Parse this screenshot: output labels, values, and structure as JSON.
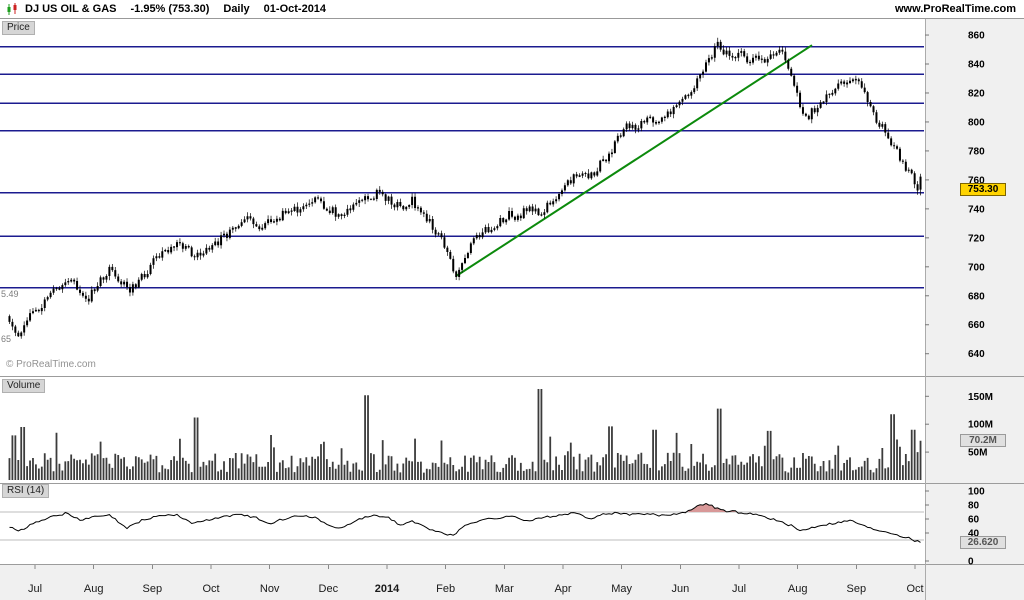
{
  "header": {
    "symbol": "DJ US OIL & GAS",
    "change": "-1.95% (753.30)",
    "timeframe": "Daily",
    "date": "01-Oct-2014",
    "site": "www.ProRealTime.com"
  },
  "panes": {
    "price": {
      "label": "Price",
      "watermark": "© ProRealTime.com",
      "last_label": "753.30",
      "left_labels": [
        {
          "text": "5.49",
          "price": 681
        },
        {
          "text": "65",
          "price": 650
        }
      ]
    },
    "volume": {
      "label": "Volume",
      "last_label": "70.2M"
    },
    "rsi": {
      "label": "RSI (14)",
      "last_label": "26.620"
    }
  },
  "colors": {
    "hline": "#1b1b8f",
    "trend": "#0c8a0c",
    "candle": "#000000",
    "volume_bar": "#3c3c3c",
    "rsi_line": "#000000",
    "rsi_band_fill": "#d89898",
    "grid_gray": "#bdbdbd",
    "axis_bg": "#f0f0f0",
    "divider": "#9c9c9c"
  },
  "chart_data": {
    "type": "candlestick",
    "title": "DJ US OIL & GAS Daily",
    "n_candles": 311,
    "x_axis": {
      "labels": [
        "Jul",
        "Aug",
        "Sep",
        "Oct",
        "Nov",
        "Dec",
        "2014",
        "Feb",
        "Mar",
        "Apr",
        "May",
        "Jun",
        "Jul",
        "Aug",
        "Sep",
        "Oct"
      ],
      "bold_index": 6
    },
    "price": {
      "ylim": [
        626,
        869
      ],
      "ticks": [
        860,
        840,
        820,
        800,
        780,
        760,
        740,
        720,
        700,
        680,
        660,
        640
      ],
      "hlines": [
        852,
        833,
        813,
        794,
        751,
        721,
        685.49
      ],
      "trendline": {
        "from": [
          457,
          694
        ],
        "to": [
          812,
          853
        ]
      },
      "last": 753.3,
      "anchors": [
        [
          8,
          666
        ],
        [
          13,
          658
        ],
        [
          18,
          651
        ],
        [
          26,
          662
        ],
        [
          36,
          670
        ],
        [
          48,
          679
        ],
        [
          60,
          687
        ],
        [
          70,
          692
        ],
        [
          80,
          685
        ],
        [
          88,
          677
        ],
        [
          98,
          689
        ],
        [
          108,
          698
        ],
        [
          118,
          693
        ],
        [
          128,
          684
        ],
        [
          140,
          691
        ],
        [
          152,
          702
        ],
        [
          164,
          710
        ],
        [
          176,
          716
        ],
        [
          188,
          711
        ],
        [
          198,
          707
        ],
        [
          210,
          713
        ],
        [
          222,
          720
        ],
        [
          234,
          727
        ],
        [
          248,
          733
        ],
        [
          260,
          728
        ],
        [
          272,
          732
        ],
        [
          286,
          737
        ],
        [
          300,
          741
        ],
        [
          314,
          746
        ],
        [
          326,
          742
        ],
        [
          338,
          736
        ],
        [
          352,
          742
        ],
        [
          366,
          748
        ],
        [
          380,
          751
        ],
        [
          392,
          745
        ],
        [
          402,
          740
        ],
        [
          412,
          746
        ],
        [
          422,
          737
        ],
        [
          432,
          728
        ],
        [
          442,
          718
        ],
        [
          450,
          703
        ],
        [
          457,
          694
        ],
        [
          466,
          710
        ],
        [
          476,
          719
        ],
        [
          486,
          725
        ],
        [
          498,
          729
        ],
        [
          508,
          737
        ],
        [
          518,
          733
        ],
        [
          528,
          741
        ],
        [
          538,
          736
        ],
        [
          548,
          743
        ],
        [
          558,
          749
        ],
        [
          568,
          757
        ],
        [
          578,
          764
        ],
        [
          588,
          761
        ],
        [
          598,
          769
        ],
        [
          608,
          777
        ],
        [
          618,
          788
        ],
        [
          628,
          798
        ],
        [
          638,
          795
        ],
        [
          648,
          804
        ],
        [
          658,
          801
        ],
        [
          668,
          807
        ],
        [
          678,
          812
        ],
        [
          688,
          819
        ],
        [
          696,
          827
        ],
        [
          704,
          836
        ],
        [
          712,
          847
        ],
        [
          718,
          856
        ],
        [
          724,
          848
        ],
        [
          732,
          844
        ],
        [
          740,
          848
        ],
        [
          748,
          842
        ],
        [
          756,
          846
        ],
        [
          764,
          843
        ],
        [
          772,
          848
        ],
        [
          780,
          850
        ],
        [
          786,
          843
        ],
        [
          792,
          831
        ],
        [
          799,
          815
        ],
        [
          805,
          801
        ],
        [
          811,
          807
        ],
        [
          818,
          812
        ],
        [
          826,
          818
        ],
        [
          834,
          822
        ],
        [
          842,
          827
        ],
        [
          850,
          831
        ],
        [
          857,
          828
        ],
        [
          864,
          820
        ],
        [
          871,
          812
        ],
        [
          877,
          801
        ],
        [
          884,
          796
        ],
        [
          890,
          788
        ],
        [
          897,
          779
        ],
        [
          904,
          771
        ],
        [
          911,
          763
        ],
        [
          917,
          756
        ],
        [
          922,
          753
        ]
      ]
    },
    "volume": {
      "ticks": [
        {
          "label": "150M",
          "value_m": 150
        },
        {
          "label": "100M",
          "value_m": 100
        },
        {
          "label": "50M",
          "value_m": 50
        }
      ],
      "scale_max_m": 181,
      "spikes_m": [
        [
          14,
          80
        ],
        [
          22,
          95
        ],
        [
          195,
          112
        ],
        [
          368,
          152
        ],
        [
          540,
          163
        ],
        [
          610,
          96
        ],
        [
          655,
          90
        ],
        [
          718,
          128
        ],
        [
          770,
          88
        ],
        [
          893,
          118
        ],
        [
          912,
          90
        ]
      ],
      "last_value_m": 70.2
    },
    "rsi": {
      "period": 14,
      "ticks": [
        100,
        80,
        60,
        40,
        0
      ],
      "bands": [
        70,
        30
      ],
      "overbought": 70,
      "last": 26.62,
      "anchors": [
        [
          8,
          50
        ],
        [
          20,
          43
        ],
        [
          34,
          54
        ],
        [
          50,
          63
        ],
        [
          66,
          68
        ],
        [
          80,
          58
        ],
        [
          95,
          63
        ],
        [
          110,
          65
        ],
        [
          126,
          47
        ],
        [
          142,
          58
        ],
        [
          160,
          65
        ],
        [
          176,
          66
        ],
        [
          192,
          54
        ],
        [
          208,
          58
        ],
        [
          224,
          64
        ],
        [
          240,
          66
        ],
        [
          256,
          62
        ],
        [
          270,
          54
        ],
        [
          286,
          61
        ],
        [
          300,
          65
        ],
        [
          314,
          63
        ],
        [
          328,
          51
        ],
        [
          342,
          47
        ],
        [
          358,
          59
        ],
        [
          374,
          66
        ],
        [
          388,
          62
        ],
        [
          400,
          51
        ],
        [
          412,
          57
        ],
        [
          424,
          49
        ],
        [
          438,
          42
        ],
        [
          452,
          36
        ],
        [
          466,
          52
        ],
        [
          482,
          59
        ],
        [
          498,
          61
        ],
        [
          514,
          64
        ],
        [
          528,
          57
        ],
        [
          544,
          62
        ],
        [
          560,
          66
        ],
        [
          576,
          68
        ],
        [
          590,
          61
        ],
        [
          604,
          67
        ],
        [
          618,
          69
        ],
        [
          632,
          66
        ],
        [
          646,
          68
        ],
        [
          660,
          65
        ],
        [
          674,
          67
        ],
        [
          688,
          71
        ],
        [
          698,
          78
        ],
        [
          706,
          83
        ],
        [
          714,
          77
        ],
        [
          721,
          73
        ],
        [
          728,
          70.5
        ],
        [
          736,
          71
        ],
        [
          744,
          66
        ],
        [
          752,
          68
        ],
        [
          762,
          64
        ],
        [
          772,
          60
        ],
        [
          782,
          55
        ],
        [
          792,
          50
        ],
        [
          800,
          43
        ],
        [
          810,
          47
        ],
        [
          820,
          51
        ],
        [
          830,
          53
        ],
        [
          842,
          56
        ],
        [
          852,
          58
        ],
        [
          862,
          51
        ],
        [
          872,
          46
        ],
        [
          882,
          43
        ],
        [
          892,
          40
        ],
        [
          900,
          36
        ],
        [
          908,
          33
        ],
        [
          915,
          29
        ],
        [
          922,
          26.6
        ]
      ]
    }
  }
}
